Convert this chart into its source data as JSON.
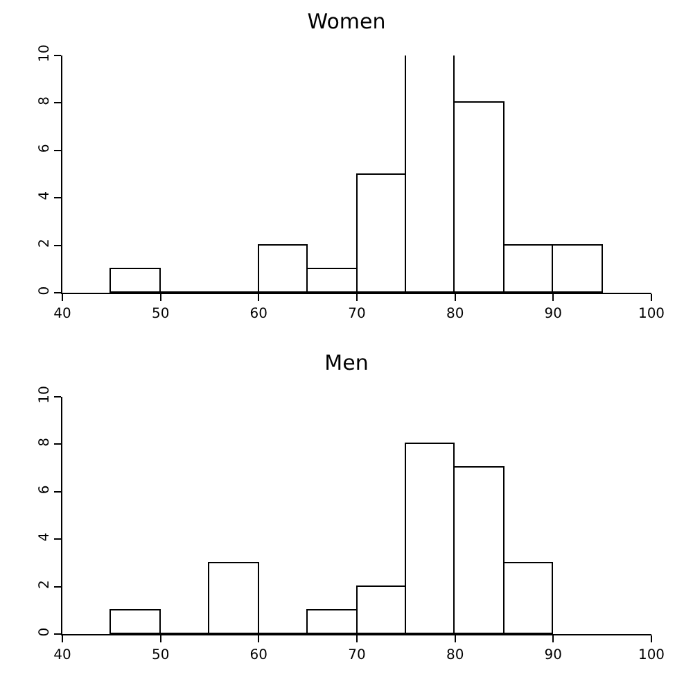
{
  "chart_data": [
    {
      "type": "histogram",
      "title": "Women",
      "bins": [
        45,
        50,
        55,
        60,
        65,
        70,
        75,
        80,
        85,
        90,
        95
      ],
      "values": [
        1,
        0,
        0,
        2,
        1,
        5,
        10,
        8,
        2,
        2
      ],
      "color": "#ffffff",
      "xlim": [
        40,
        100
      ],
      "xticks": [
        40,
        50,
        60,
        70,
        80,
        90,
        100
      ],
      "ylim": [
        0,
        10
      ],
      "yticks": [
        0,
        2,
        4,
        6,
        8,
        10
      ]
    },
    {
      "type": "histogram",
      "title": "Men",
      "bins": [
        45,
        50,
        55,
        60,
        65,
        70,
        75,
        80,
        85,
        90
      ],
      "values": [
        1,
        0,
        3,
        0,
        1,
        2,
        8,
        7,
        3
      ],
      "color": "#ffffff",
      "xlim": [
        40,
        100
      ],
      "xticks": [
        40,
        50,
        60,
        70,
        80,
        90,
        100
      ],
      "ylim": [
        0,
        10
      ],
      "yticks": [
        0,
        2,
        4,
        6,
        8,
        10
      ]
    }
  ]
}
